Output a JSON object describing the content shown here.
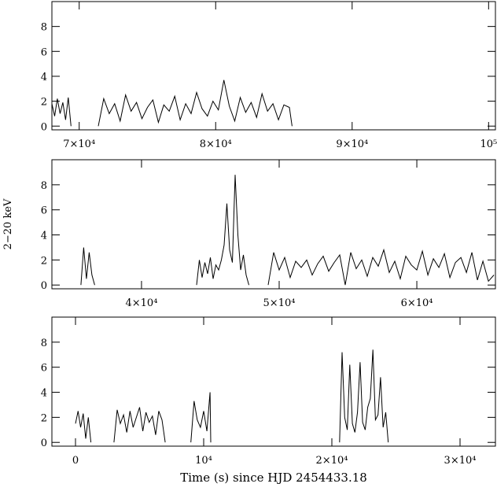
{
  "chart_data": [
    {
      "type": "line",
      "y_label": "2−20 keV",
      "xlim": [
        68000,
        100500
      ],
      "ylim": [
        -0.3,
        10
      ],
      "xticks": [
        {
          "value": 70000,
          "label": "7×10⁴"
        },
        {
          "value": 80000,
          "label": "8×10⁴"
        },
        {
          "value": 90000,
          "label": "9×10⁴"
        },
        {
          "value": 100000,
          "label": "10⁵"
        }
      ],
      "yticks": [
        0,
        2,
        4,
        6,
        8
      ],
      "x": [
        68000,
        68200,
        68400,
        68600,
        68800,
        69000,
        69200,
        69400,
        70000,
        71400,
        71800,
        72200,
        72600,
        73000,
        73400,
        73800,
        74200,
        74600,
        75000,
        75400,
        75800,
        76200,
        76600,
        77000,
        77400,
        77800,
        78200,
        78600,
        79000,
        79400,
        79800,
        80200,
        80600,
        81000,
        81400,
        81800,
        82200,
        82600,
        83000,
        83400,
        83800,
        84200,
        84600,
        85000,
        85400,
        85600
      ],
      "series": [
        {
          "color": "#000000",
          "values": [
            1.8,
            0.8,
            2.2,
            1.0,
            1.9,
            0.5,
            2.3,
            0,
            null,
            0,
            2.2,
            1.0,
            1.8,
            0.4,
            2.5,
            1.2,
            1.9,
            0.6,
            1.5,
            2.1,
            0.3,
            1.7,
            1.2,
            2.4,
            0.5,
            1.8,
            1.0,
            2.7,
            1.4,
            0.8,
            2.0,
            1.3,
            3.7,
            1.6,
            0.4,
            2.3,
            1.1,
            1.9,
            0.7,
            2.6,
            1.2,
            1.8,
            0.5,
            1.7,
            1.5,
            0
          ]
        }
      ]
    },
    {
      "type": "line",
      "xlim": [
        33490,
        65710
      ],
      "ylim": [
        -0.3,
        10
      ],
      "xticks": [
        {
          "value": 40000,
          "label": "4×10⁴"
        },
        {
          "value": 50000,
          "label": "5×10⁴"
        },
        {
          "value": 60000,
          "label": "6×10⁴"
        }
      ],
      "yticks": [
        0,
        2,
        4,
        6,
        8
      ],
      "x": [
        35600,
        35800,
        36000,
        36200,
        36400,
        36600,
        40000,
        44000,
        44200,
        44400,
        44600,
        44800,
        45000,
        45200,
        45400,
        45600,
        45800,
        46000,
        46200,
        46400,
        46600,
        46800,
        47000,
        47200,
        47400,
        47600,
        47800,
        48500,
        49200,
        49600,
        50000,
        50400,
        50800,
        51200,
        51600,
        52000,
        52400,
        52800,
        53200,
        53600,
        54000,
        54400,
        54800,
        55200,
        55600,
        56000,
        56400,
        56800,
        57200,
        57600,
        58000,
        58400,
        58800,
        59200,
        59600,
        60000,
        60400,
        60800,
        61200,
        61600,
        62000,
        62400,
        62800,
        63200,
        63600,
        64000,
        64400,
        64800,
        65200,
        65600
      ],
      "series": [
        {
          "color": "#000000",
          "values": [
            0,
            3.0,
            0.5,
            2.6,
            0.8,
            0,
            null,
            0,
            2.0,
            0.6,
            1.8,
            0.9,
            2.2,
            0.5,
            1.6,
            1.2,
            2.0,
            3.2,
            6.5,
            2.8,
            1.8,
            8.8,
            4.0,
            1.2,
            2.4,
            0.8,
            0,
            null,
            0,
            2.6,
            1.2,
            2.2,
            0.6,
            1.9,
            1.4,
            2.0,
            0.8,
            1.7,
            2.3,
            1.1,
            1.8,
            2.4,
            0,
            2.6,
            1.3,
            2.0,
            0.7,
            2.2,
            1.5,
            2.8,
            1.0,
            1.9,
            0.5,
            2.3,
            1.6,
            1.2,
            2.7,
            0.8,
            2.1,
            1.4,
            2.5,
            0.6,
            1.8,
            2.2,
            1.0,
            2.6,
            0.4,
            1.9,
            0.3,
            0.8
          ]
        }
      ]
    },
    {
      "type": "line",
      "x_label": "Time (s) since HJD 2454433.18",
      "xlim": [
        -1840,
        32760
      ],
      "ylim": [
        -0.3,
        10
      ],
      "xticks": [
        0,
        {
          "value": 10000,
          "label": "10⁴"
        },
        {
          "value": 20000,
          "label": "2×10⁴"
        },
        {
          "value": 30000,
          "label": "3×10⁴"
        }
      ],
      "yticks": [
        0,
        2,
        4,
        6,
        8
      ],
      "x": [
        0,
        200,
        400,
        600,
        800,
        1000,
        1200,
        2000,
        3000,
        3250,
        3500,
        3750,
        4000,
        4250,
        4500,
        4750,
        5000,
        5250,
        5500,
        5750,
        6000,
        6250,
        6500,
        6750,
        7000,
        8000,
        9000,
        9250,
        9500,
        9750,
        10000,
        10250,
        10500,
        10550,
        15000,
        20600,
        20800,
        21000,
        21200,
        21400,
        21600,
        21800,
        22000,
        22200,
        22400,
        22600,
        22800,
        23000,
        23200,
        23400,
        23600,
        23800,
        24000,
        24200,
        24400
      ],
      "series": [
        {
          "color": "#000000",
          "values": [
            1.5,
            2.5,
            1.2,
            2.3,
            0.3,
            2.0,
            0,
            null,
            0,
            2.6,
            1.5,
            2.2,
            0.8,
            2.5,
            1.2,
            2.0,
            2.8,
            0.9,
            2.4,
            1.6,
            2.1,
            0.6,
            2.5,
            1.8,
            0,
            null,
            0,
            3.3,
            1.8,
            1.2,
            2.5,
            0.9,
            4.0,
            0,
            null,
            0,
            7.2,
            2.0,
            1.0,
            6.2,
            1.5,
            0.8,
            2.4,
            6.4,
            1.6,
            1.0,
            2.8,
            3.5,
            7.4,
            1.8,
            2.2,
            5.2,
            1.2,
            2.4,
            0
          ]
        }
      ]
    }
  ]
}
